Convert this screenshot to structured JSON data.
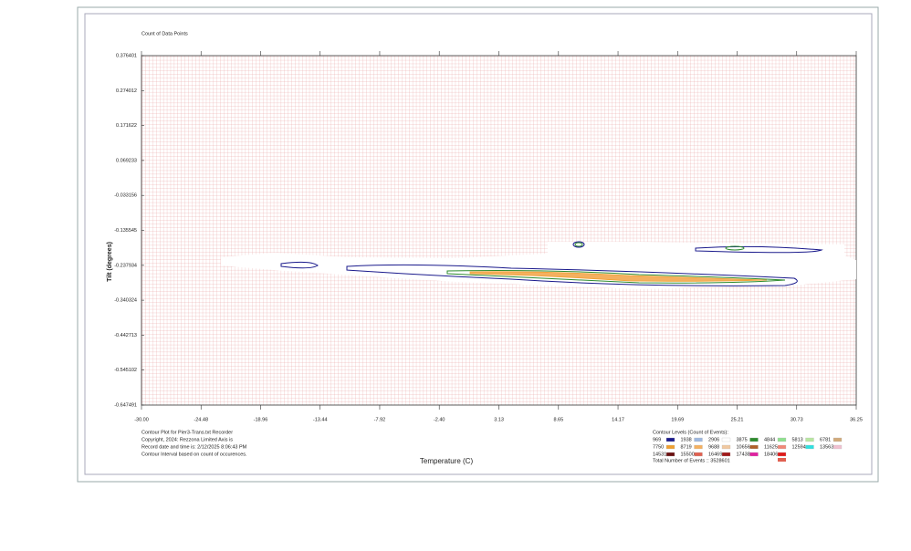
{
  "chart_data": {
    "type": "contour",
    "title": "Count of Data Points",
    "x_label": "Temperature (C)",
    "y_label": "Tilt (degrees)",
    "xlim": [
      -30,
      36.25
    ],
    "xticks": [
      {
        "value": -30,
        "label": "-30.00"
      },
      -24.48,
      -18.96,
      -13.44,
      -7.92,
      {
        "value": -2.4,
        "label": "-2.40"
      },
      3.13,
      8.65,
      14.17,
      19.69,
      25.21,
      30.73,
      36.25
    ],
    "ylim": [
      -0.647491,
      0.376401
    ],
    "yticks": [
      0.376401,
      0.274012,
      0.171622,
      0.069233,
      -0.033156,
      -0.135545,
      -0.237934,
      -0.340324,
      -0.442713,
      -0.545102,
      -0.647491
    ],
    "grid": true,
    "notes": [
      "Contour Plot for Pier3-Trans.txt Recorder",
      "Copyright, 2024: Rezzona Limited Axis is",
      "Record date and time is: 2/12/2025 8:06:43 PM",
      "Contour Interval based on count of occurences."
    ],
    "legend_title": "Contour Levels (Count of Events):",
    "levels": [
      {
        "level": 969,
        "color": "#1a1a8c"
      },
      {
        "level": 1938,
        "color": "#9db8e0"
      },
      {
        "level": 2906,
        "color": "#ffffff"
      },
      {
        "level": 3875,
        "color": "#2e8b2e"
      },
      {
        "level": 4844,
        "color": "#8fe08f"
      },
      {
        "level": 5813,
        "color": "#b8e6a0"
      },
      {
        "level": 6781,
        "color": "#d2aa7a"
      },
      {
        "level": 7750,
        "color": "#f0a030"
      },
      {
        "level": 8719,
        "color": "#f4b060"
      },
      {
        "level": 9688,
        "color": "#f0c8a0"
      },
      {
        "level": 10656,
        "color": "#b0602a"
      },
      {
        "level": 11625,
        "color": "#f08878"
      },
      {
        "level": 12594,
        "color": "#30e0e0"
      },
      {
        "level": 13563,
        "color": "#f0c0d0"
      },
      {
        "level": 14531,
        "color": "#6a1010"
      },
      {
        "level": 15500,
        "color": "#e06050"
      },
      {
        "level": 16469,
        "color": "#a01818"
      },
      {
        "level": 17438,
        "color": "#e020a0"
      },
      {
        "level": 18406,
        "color": "#e01818"
      }
    ],
    "total_events": "Total Number of Events :: 3528601"
  }
}
